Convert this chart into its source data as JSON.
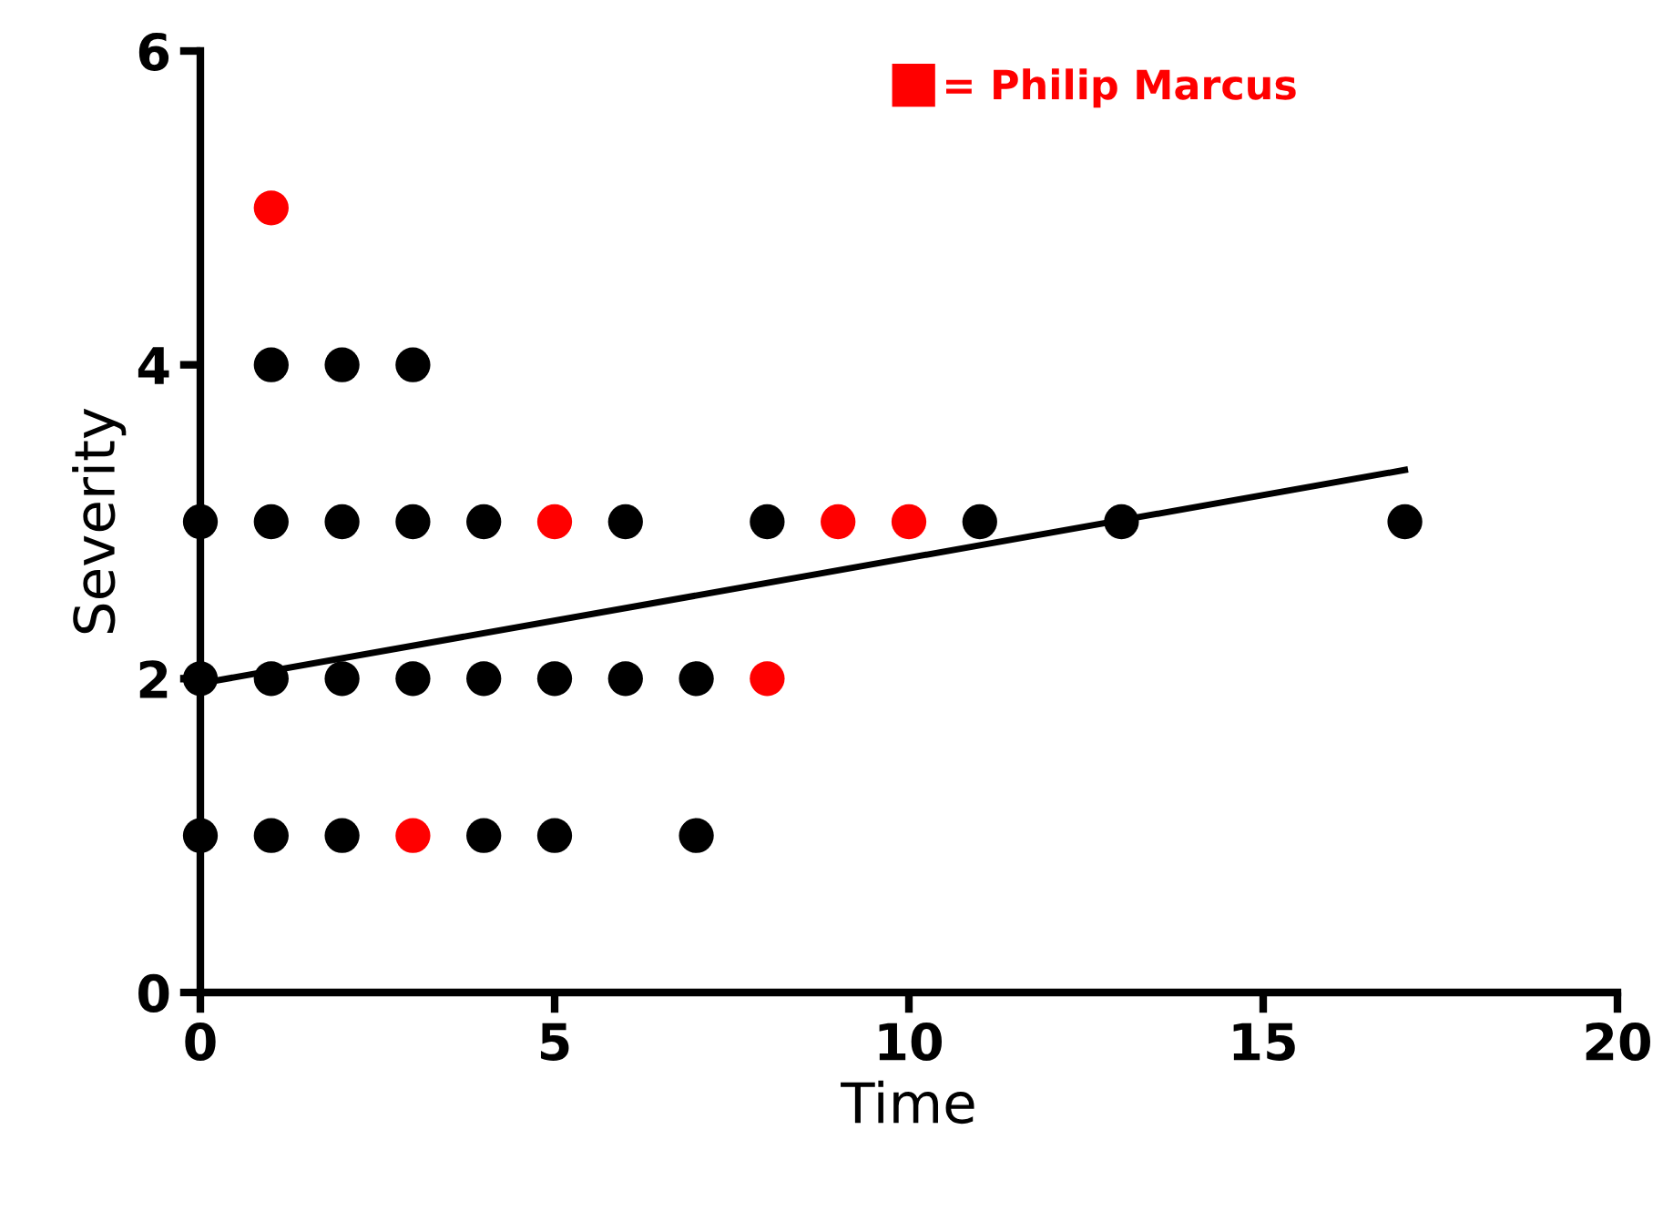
{
  "chart_data": {
    "type": "scatter",
    "xlabel": "Time",
    "ylabel": "Severity",
    "xlim": [
      0,
      20
    ],
    "xticks": [
      0,
      5,
      10,
      15,
      20
    ],
    "ylim": [
      0,
      6
    ],
    "yticks": [
      0,
      2,
      4,
      6
    ],
    "grid": false,
    "legend": "top right",
    "marker": "circle",
    "series": [
      {
        "color": "#000000",
        "x": [
          0,
          1,
          2,
          3,
          4,
          6,
          8,
          11,
          13,
          17,
          1,
          2,
          3,
          0,
          1,
          2,
          3,
          4,
          5,
          6,
          7,
          0,
          1,
          2,
          4,
          5,
          7
        ],
        "values": [
          3,
          3,
          3,
          3,
          3,
          3,
          3,
          3,
          3,
          3,
          4,
          4,
          4,
          2,
          2,
          2,
          2,
          2,
          2,
          2,
          2,
          1,
          1,
          1,
          1,
          1,
          1
        ]
      },
      {
        "name": "= Philip Marcus",
        "color": "#ff0000",
        "x": [
          5,
          9,
          10,
          1,
          8,
          3
        ],
        "values": [
          3,
          3,
          3,
          5,
          2,
          1
        ]
      },
      {
        "type": "line",
        "marker": "none",
        "color": "#000000",
        "x": [
          0,
          17
        ],
        "values": [
          1.97,
          3.33
        ]
      }
    ]
  }
}
